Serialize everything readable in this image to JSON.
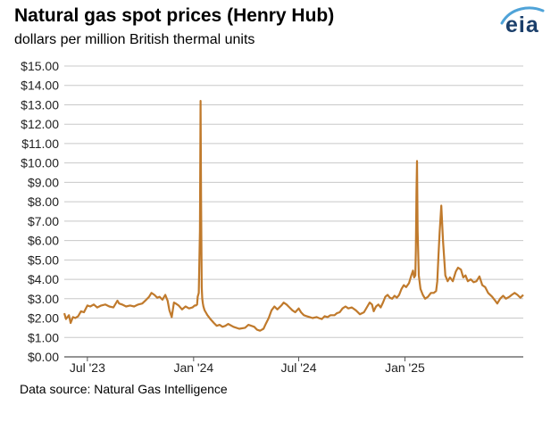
{
  "title": "Natural gas spot prices (Henry Hub)",
  "subtitle": "dollars per million British thermal units",
  "source": "Data source: Natural Gas Intelligence",
  "logo_text": "eia",
  "colors": {
    "line": "#c07a2c",
    "grid": "#c8c8c8",
    "logo": "#1b3f6b",
    "logo_swoosh": "#4fa3d8"
  },
  "chart_data": {
    "type": "line",
    "title": "Natural gas spot prices (Henry Hub)",
    "ylabel": "dollars per million British thermal units",
    "xlabel": "",
    "ylim": [
      0,
      15
    ],
    "xlim": [
      "2023-05-22",
      "2025-07-25"
    ],
    "grid": true,
    "legend": "none",
    "y_ticks": [
      0,
      1,
      2,
      3,
      4,
      5,
      6,
      7,
      8,
      9,
      10,
      11,
      12,
      13,
      14,
      15
    ],
    "y_tick_labels": [
      "$0.00",
      "$1.00",
      "$2.00",
      "$3.00",
      "$4.00",
      "$5.00",
      "$6.00",
      "$7.00",
      "$8.00",
      "$9.00",
      "$10.00",
      "$11.00",
      "$12.00",
      "$13.00",
      "$14.00",
      "$15.00"
    ],
    "x_ticks": [
      "2023-07-01",
      "2024-01-01",
      "2024-07-01",
      "2025-01-01"
    ],
    "x_tick_labels": [
      "Jul '23",
      "Jan '24",
      "Jul '24",
      "Jan '25"
    ],
    "series": [
      {
        "x": [
          "2023-05-22",
          "2023-05-25",
          "2023-05-30",
          "2023-06-02",
          "2023-06-06",
          "2023-06-10",
          "2023-06-15",
          "2023-06-20",
          "2023-06-25",
          "2023-07-01",
          "2023-07-06",
          "2023-07-12",
          "2023-07-18",
          "2023-07-25",
          "2023-08-01",
          "2023-08-08",
          "2023-08-15",
          "2023-08-22",
          "2023-08-25",
          "2023-08-30",
          "2023-09-06",
          "2023-09-13",
          "2023-09-20",
          "2023-09-27",
          "2023-10-04",
          "2023-10-11",
          "2023-10-16",
          "2023-10-20",
          "2023-10-25",
          "2023-10-30",
          "2023-11-03",
          "2023-11-08",
          "2023-11-13",
          "2023-11-17",
          "2023-11-20",
          "2023-11-24",
          "2023-11-28",
          "2023-12-01",
          "2023-12-06",
          "2023-12-12",
          "2023-12-18",
          "2023-12-24",
          "2023-12-30",
          "2024-01-03",
          "2024-01-05",
          "2024-01-07",
          "2024-01-08",
          "2024-01-10",
          "2024-01-12",
          "2024-01-13",
          "2024-01-14",
          "2024-01-15",
          "2024-01-16",
          "2024-01-17",
          "2024-01-18",
          "2024-01-20",
          "2024-01-22",
          "2024-01-25",
          "2024-01-30",
          "2024-02-05",
          "2024-02-10",
          "2024-02-15",
          "2024-02-20",
          "2024-02-25",
          "2024-03-01",
          "2024-03-10",
          "2024-03-20",
          "2024-03-30",
          "2024-04-05",
          "2024-04-10",
          "2024-04-15",
          "2024-04-20",
          "2024-04-25",
          "2024-05-01",
          "2024-05-05",
          "2024-05-10",
          "2024-05-15",
          "2024-05-20",
          "2024-05-25",
          "2024-06-01",
          "2024-06-05",
          "2024-06-10",
          "2024-06-15",
          "2024-06-20",
          "2024-06-25",
          "2024-07-01",
          "2024-07-05",
          "2024-07-10",
          "2024-07-15",
          "2024-07-20",
          "2024-07-25",
          "2024-08-01",
          "2024-08-05",
          "2024-08-10",
          "2024-08-15",
          "2024-08-20",
          "2024-08-25",
          "2024-09-01",
          "2024-09-05",
          "2024-09-10",
          "2024-09-15",
          "2024-09-20",
          "2024-09-25",
          "2024-10-01",
          "2024-10-08",
          "2024-10-15",
          "2024-10-22",
          "2024-10-28",
          "2024-11-01",
          "2024-11-05",
          "2024-11-08",
          "2024-11-12",
          "2024-11-16",
          "2024-11-20",
          "2024-11-24",
          "2024-11-28",
          "2024-12-02",
          "2024-12-06",
          "2024-12-10",
          "2024-12-14",
          "2024-12-18",
          "2024-12-22",
          "2024-12-26",
          "2024-12-30",
          "2025-01-03",
          "2025-01-08",
          "2025-01-12",
          "2025-01-15",
          "2025-01-17",
          "2025-01-19",
          "2025-01-20",
          "2025-01-21",
          "2025-01-22",
          "2025-01-23",
          "2025-01-25",
          "2025-01-28",
          "2025-02-01",
          "2025-02-05",
          "2025-02-10",
          "2025-02-15",
          "2025-02-20",
          "2025-02-24",
          "2025-02-26",
          "2025-02-28",
          "2025-03-02",
          "2025-03-05",
          "2025-03-08",
          "2025-03-12",
          "2025-03-16",
          "2025-03-20",
          "2025-03-25",
          "2025-03-30",
          "2025-04-03",
          "2025-04-08",
          "2025-04-12",
          "2025-04-16",
          "2025-04-20",
          "2025-04-25",
          "2025-04-30",
          "2025-05-05",
          "2025-05-10",
          "2025-05-15",
          "2025-05-20",
          "2025-05-25",
          "2025-06-01",
          "2025-06-05",
          "2025-06-10",
          "2025-06-15",
          "2025-06-20",
          "2025-06-25",
          "2025-07-01",
          "2025-07-05",
          "2025-07-10",
          "2025-07-15",
          "2025-07-20",
          "2025-07-25"
        ],
        "y": [
          2.25,
          1.95,
          2.15,
          1.75,
          2.05,
          2.0,
          2.1,
          2.35,
          2.3,
          2.65,
          2.6,
          2.7,
          2.55,
          2.65,
          2.7,
          2.6,
          2.55,
          2.9,
          2.75,
          2.7,
          2.6,
          2.65,
          2.6,
          2.7,
          2.75,
          2.95,
          3.1,
          3.3,
          3.2,
          3.05,
          3.1,
          2.95,
          3.2,
          2.9,
          2.4,
          2.05,
          2.8,
          2.75,
          2.65,
          2.45,
          2.6,
          2.5,
          2.55,
          2.65,
          2.65,
          2.7,
          3.1,
          3.3,
          6.5,
          13.2,
          8.0,
          3.6,
          3.0,
          2.75,
          2.6,
          2.4,
          2.3,
          2.15,
          1.95,
          1.75,
          1.6,
          1.65,
          1.55,
          1.6,
          1.7,
          1.55,
          1.45,
          1.5,
          1.65,
          1.6,
          1.55,
          1.4,
          1.35,
          1.45,
          1.7,
          2.0,
          2.4,
          2.6,
          2.45,
          2.65,
          2.8,
          2.7,
          2.55,
          2.4,
          2.3,
          2.5,
          2.3,
          2.15,
          2.1,
          2.05,
          2.0,
          2.05,
          2.0,
          1.95,
          2.1,
          2.05,
          2.15,
          2.15,
          2.25,
          2.3,
          2.5,
          2.6,
          2.5,
          2.55,
          2.4,
          2.2,
          2.3,
          2.6,
          2.8,
          2.7,
          2.35,
          2.6,
          2.7,
          2.55,
          2.8,
          3.1,
          3.2,
          3.05,
          3.0,
          3.15,
          3.05,
          3.2,
          3.5,
          3.7,
          3.6,
          3.8,
          4.2,
          4.45,
          4.1,
          4.2,
          5.5,
          8.5,
          10.1,
          6.5,
          4.2,
          3.5,
          3.2,
          3.0,
          3.1,
          3.3,
          3.3,
          3.4,
          3.9,
          5.2,
          6.4,
          7.8,
          6.0,
          4.2,
          3.9,
          4.1,
          3.9,
          4.4,
          4.6,
          4.5,
          4.1,
          4.2,
          3.9,
          4.0,
          3.85,
          3.9,
          4.15,
          3.7,
          3.6,
          3.3,
          3.1,
          2.95,
          2.75,
          3.0,
          3.15,
          3.0,
          3.1,
          3.2,
          3.3,
          3.2,
          3.05,
          3.2
        ]
      }
    ]
  }
}
